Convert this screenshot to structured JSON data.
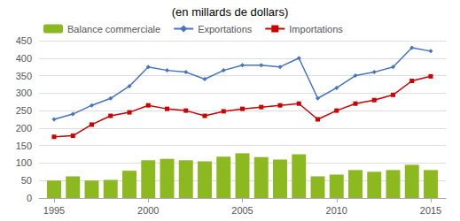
{
  "chart_data": {
    "type": "bar",
    "title": "(en millards de dollars)",
    "x": [
      1995,
      1996,
      1997,
      1998,
      1999,
      2000,
      2001,
      2002,
      2003,
      2004,
      2005,
      2006,
      2007,
      2008,
      2009,
      2010,
      2011,
      2012,
      2013,
      2014,
      2015
    ],
    "series": [
      {
        "name": "Balance commerciale",
        "type": "bar",
        "color": "#8DB920",
        "values": [
          50,
          62,
          50,
          52,
          78,
          108,
          112,
          108,
          105,
          118,
          128,
          117,
          110,
          125,
          62,
          67,
          80,
          75,
          80,
          95,
          80
        ]
      },
      {
        "name": "Exportations",
        "type": "line",
        "color": "#4472C4",
        "marker": "diamond",
        "values": [
          225,
          240,
          265,
          285,
          320,
          375,
          365,
          360,
          340,
          365,
          380,
          380,
          375,
          400,
          285,
          315,
          350,
          360,
          375,
          430,
          420
        ]
      },
      {
        "name": "Importations",
        "type": "line",
        "color": "#CC0000",
        "marker": "square",
        "values": [
          175,
          178,
          210,
          235,
          245,
          265,
          255,
          250,
          235,
          248,
          255,
          260,
          265,
          270,
          225,
          250,
          270,
          280,
          295,
          335,
          348
        ]
      }
    ],
    "xlim": [
      1994.2,
      2015.8
    ],
    "xticks": [
      1995,
      2000,
      2005,
      2010,
      2015
    ],
    "ylim": [
      0,
      450
    ],
    "yticks": [
      0,
      50,
      100,
      150,
      200,
      250,
      300,
      350,
      400,
      450
    ],
    "grid": true,
    "legend": "upper left"
  }
}
